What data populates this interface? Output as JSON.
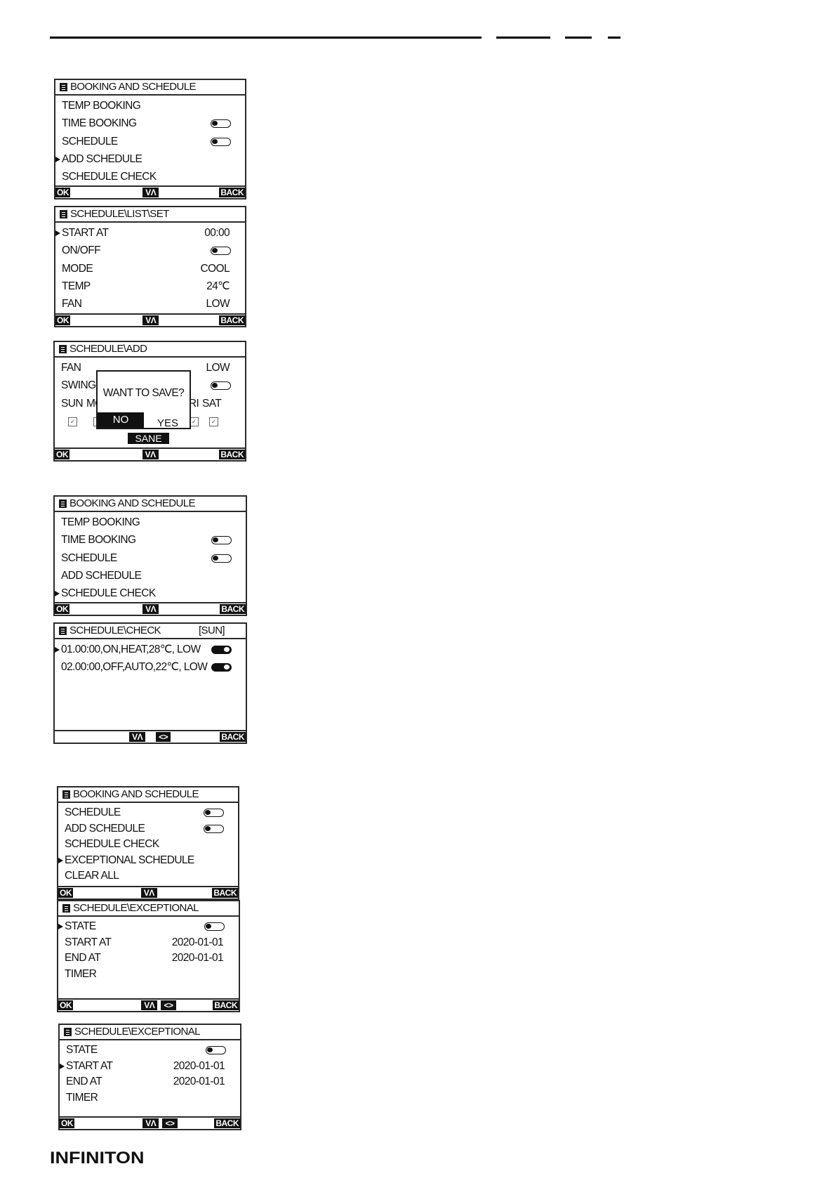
{
  "logo": "INFINITON",
  "panels": [
    {
      "title": "BOOKING AND SCHEDULE",
      "title_right": "",
      "rows": [
        {
          "label": "TEMP BOOKING"
        },
        {
          "label": "TIME BOOKING",
          "toggle": "off"
        },
        {
          "label": "SCHEDULE",
          "toggle": "off"
        },
        {
          "label": "ADD SCHEDULE",
          "selected": true
        },
        {
          "label": "SCHEDULE CHECK"
        }
      ],
      "footer": {
        "ok": "OK",
        "updown": "VΛ",
        "back": "BACK"
      }
    },
    {
      "title": "SCHEDULE\\LIST\\SET",
      "title_right": "",
      "rows": [
        {
          "label": "START AT",
          "value": "00:00",
          "selected": true
        },
        {
          "label": "ON/OFF",
          "toggle": "off"
        },
        {
          "label": "MODE",
          "value": "COOL"
        },
        {
          "label": "TEMP",
          "value": "24℃"
        },
        {
          "label": "FAN",
          "value": "LOW"
        }
      ],
      "footer": {
        "ok": "OK",
        "updown": "VΛ",
        "back": "BACK"
      }
    },
    {
      "title": "SCHEDULE\\ADD",
      "title_right": "",
      "rows": [
        {
          "label": "FAN",
          "value": "LOW"
        },
        {
          "label": "SWING",
          "toggle": "off"
        }
      ],
      "days": [
        "SUN",
        "MON",
        "FRI",
        "SAT"
      ],
      "dialog": {
        "question": "WANT TO SAVE?",
        "no": "NO",
        "yes": "YES"
      },
      "save_label": "SANE",
      "footer": {
        "ok": "OK",
        "updown": "VΛ",
        "back": "BACK"
      }
    },
    {
      "title": "BOOKING AND SCHEDULE",
      "title_right": "",
      "rows": [
        {
          "label": "TEMP BOOKING"
        },
        {
          "label": "TIME BOOKING",
          "toggle": "off"
        },
        {
          "label": "SCHEDULE",
          "toggle": "off"
        },
        {
          "label": "ADD SCHEDULE"
        },
        {
          "label": "SCHEDULE CHECK",
          "selected": true
        }
      ],
      "footer": {
        "ok": "OK",
        "updown": "VΛ",
        "back": "BACK"
      }
    },
    {
      "title": "SCHEDULE\\CHECK",
      "title_right": "[SUN]",
      "rows": [
        {
          "label": "01.00:00,ON,HEAT,28℃, LOW",
          "toggle": "on",
          "selected": true
        },
        {
          "label": "02.00:00,OFF,AUTO,22℃, LOW",
          "toggle": "on"
        }
      ],
      "footer": {
        "updown": "VΛ",
        "leftright": "<>",
        "back": "BACK"
      }
    },
    {
      "title": "BOOKING AND SCHEDULE",
      "title_right": "",
      "rows": [
        {
          "label": "SCHEDULE",
          "toggle": "off"
        },
        {
          "label": "ADD SCHEDULE",
          "toggle": "off"
        },
        {
          "label": "SCHEDULE CHECK"
        },
        {
          "label": "EXCEPTIONAL SCHEDULE",
          "selected": true
        },
        {
          "label": "CLEAR ALL"
        }
      ],
      "footer": {
        "ok": "OK",
        "updown": "VΛ",
        "back": "BACK"
      }
    },
    {
      "title": "SCHEDULE\\EXCEPTIONAL",
      "title_right": "",
      "rows": [
        {
          "label": "STATE",
          "toggle": "off",
          "selected": true
        },
        {
          "label": "START AT",
          "value": "2020-01-01"
        },
        {
          "label": "END AT",
          "value": "2020-01-01"
        },
        {
          "label": "TIMER"
        }
      ],
      "footer": {
        "ok": "OK",
        "updown": "VΛ",
        "leftright": "<>",
        "back": "BACK"
      }
    },
    {
      "title": "SCHEDULE\\EXCEPTIONAL",
      "title_right": "",
      "rows": [
        {
          "label": "STATE",
          "toggle": "off"
        },
        {
          "label": "START AT",
          "value": "2020-01-01",
          "selected": true
        },
        {
          "label": "END AT",
          "value": "2020-01-01"
        },
        {
          "label": "TIMER"
        }
      ],
      "footer": {
        "ok": "OK",
        "updown": "VΛ",
        "leftright": "<>",
        "back": "BACK"
      }
    }
  ]
}
